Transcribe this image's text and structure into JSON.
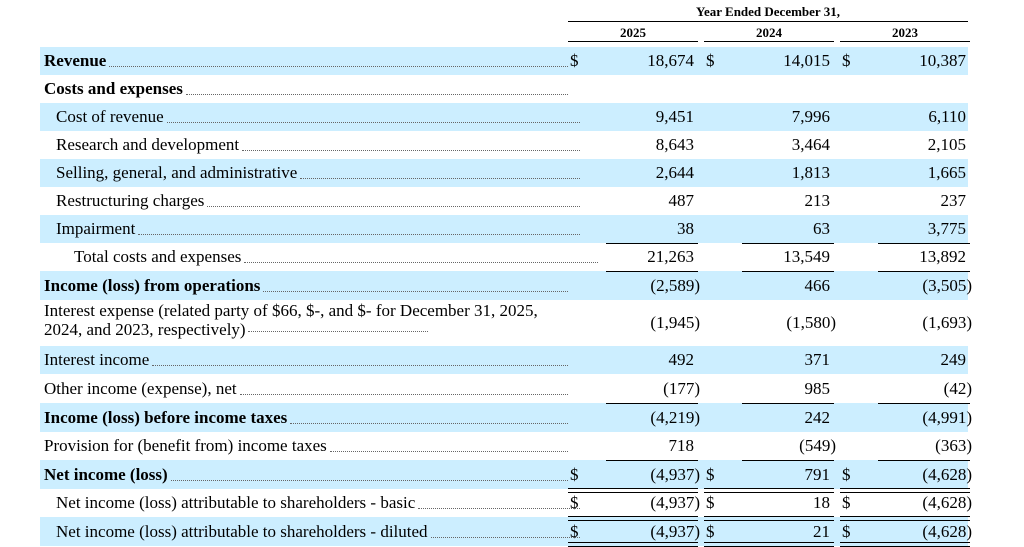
{
  "header": {
    "period": "Year Ended December 31,",
    "years": [
      "2025",
      "2024",
      "2023"
    ]
  },
  "rows": [
    {
      "label": "Revenue",
      "values": [
        "18,674",
        "14,015",
        "10,387"
      ],
      "dollar": true
    },
    {
      "label": "Costs and expenses",
      "values": [
        "",
        "",
        ""
      ]
    },
    {
      "label": "Cost of revenue",
      "values": [
        "9,451",
        "7,996",
        "6,110"
      ]
    },
    {
      "label": "Research and development",
      "values": [
        "8,643",
        "3,464",
        "2,105"
      ]
    },
    {
      "label": "Selling, general, and administrative",
      "values": [
        "2,644",
        "1,813",
        "1,665"
      ]
    },
    {
      "label": "Restructuring charges",
      "values": [
        "487",
        "213",
        "237"
      ]
    },
    {
      "label": "Impairment",
      "values": [
        "38",
        "63",
        "3,775"
      ]
    },
    {
      "label": "Total costs and expenses",
      "values": [
        "21,263",
        "13,549",
        "13,892"
      ]
    },
    {
      "label": "Income (loss) from operations",
      "values": [
        "(2,589)",
        "466",
        "(3,505)"
      ]
    },
    {
      "label": "Interest expense (related party of $66, $-, and $- for December 31, 2025, 2024, and 2023, respectively)",
      "values": [
        "(1,945)",
        "(1,580)",
        "(1,693)"
      ]
    },
    {
      "label": "Interest income",
      "values": [
        "492",
        "371",
        "249"
      ]
    },
    {
      "label": "Other income (expense), net",
      "values": [
        "(177)",
        "985",
        "(42)"
      ]
    },
    {
      "label": "Income (loss) before income taxes",
      "values": [
        "(4,219)",
        "242",
        "(4,991)"
      ]
    },
    {
      "label": "Provision for (benefit from) income taxes",
      "values": [
        "718",
        "(549)",
        "(363)"
      ]
    },
    {
      "label": "Net income (loss)",
      "values": [
        "(4,937)",
        "791",
        "(4,628)"
      ],
      "dollar": true
    },
    {
      "label": "Net income (loss) attributable to shareholders - basic",
      "values": [
        "(4,937)",
        "18",
        "(4,628)"
      ],
      "dollar": true
    },
    {
      "label": "Net income (loss) attributable to shareholders - diluted",
      "values": [
        "(4,937)",
        "21",
        "(4,628)"
      ],
      "dollar": true
    }
  ],
  "currency_symbol": "$",
  "colors": {
    "row_shade": "#cceeff"
  }
}
